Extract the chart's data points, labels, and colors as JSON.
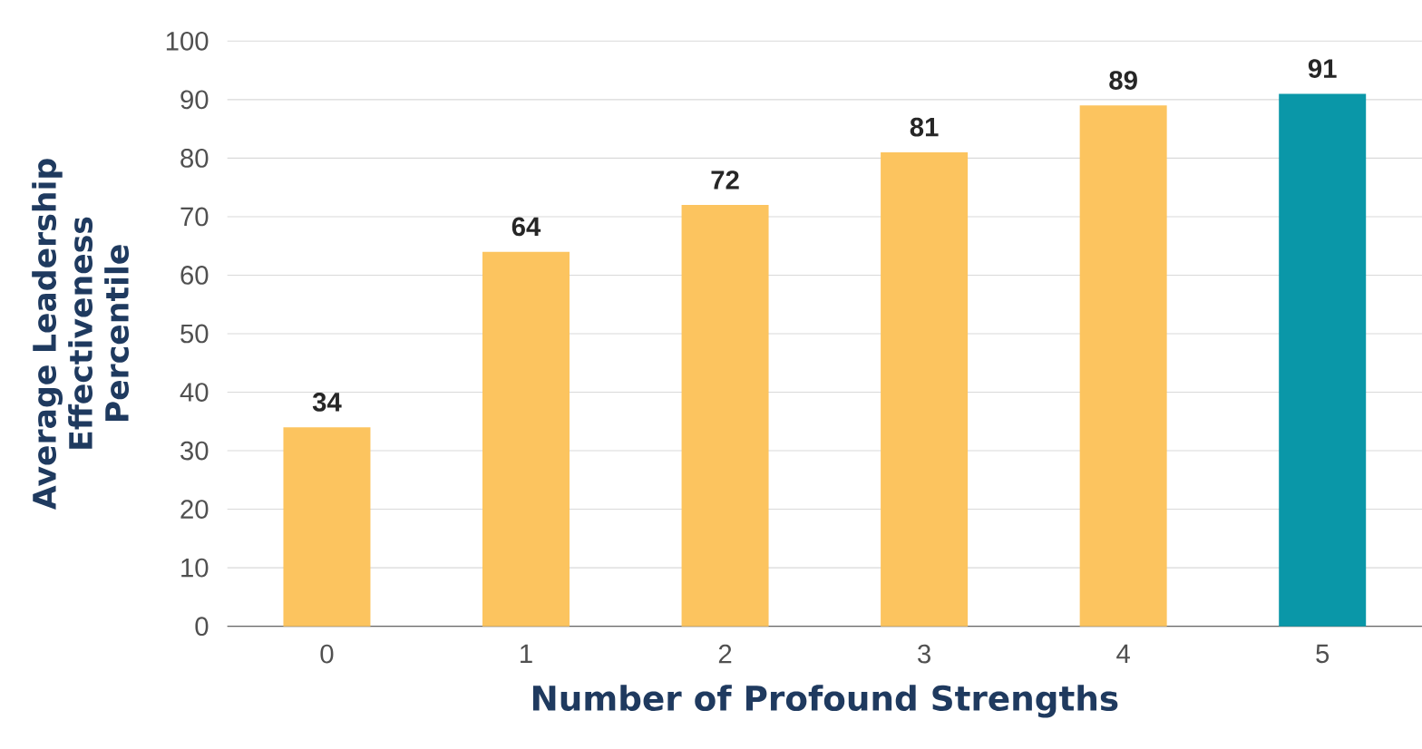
{
  "chart_data": {
    "type": "bar",
    "xlabel": "Number of Profound Strengths",
    "ylabel": "Average Leadership Effectiveness Percentile",
    "categories": [
      "0",
      "1",
      "2",
      "3",
      "4",
      "5"
    ],
    "values": [
      34,
      64,
      72,
      81,
      89,
      91
    ],
    "colors": [
      "#fcc45f",
      "#fcc45f",
      "#fcc45f",
      "#fcc45f",
      "#fcc45f",
      "#0a97a8"
    ],
    "ylim": [
      0,
      100
    ],
    "yticks": [
      0,
      10,
      20,
      30,
      40,
      50,
      60,
      70,
      80,
      90,
      100
    ],
    "grid": "y",
    "data_labels": true
  }
}
